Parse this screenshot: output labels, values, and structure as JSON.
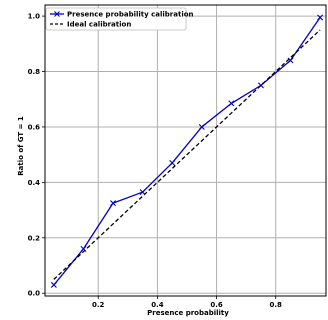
{
  "chart_data": {
    "type": "line",
    "xlabel": "Presence probability",
    "ylabel": "Ratio of GT = 1",
    "xlim": [
      0.02,
      0.97
    ],
    "ylim": [
      -0.01,
      1.04
    ],
    "xticks": [
      0.2,
      0.4,
      0.6,
      0.8
    ],
    "xtick_labels": [
      "0.2",
      "0.4",
      "0.6",
      "0.8"
    ],
    "yticks": [
      0.0,
      0.2,
      0.4,
      0.6,
      0.8,
      1.0
    ],
    "ytick_labels": [
      "0.0",
      "0.2",
      "0.4",
      "0.6",
      "0.8",
      "1.0"
    ],
    "grid": true,
    "legend_position": "top-left",
    "series": [
      {
        "name": "Presence probability calibration",
        "color": "#0000cc",
        "style": "solid",
        "marker": "x",
        "x": [
          0.05,
          0.15,
          0.25,
          0.35,
          0.45,
          0.55,
          0.65,
          0.75,
          0.85,
          0.95
        ],
        "y": [
          0.03,
          0.16,
          0.325,
          0.365,
          0.47,
          0.6,
          0.685,
          0.75,
          0.84,
          0.995
        ]
      },
      {
        "name": "Ideal calibration",
        "color": "#000000",
        "style": "dashed",
        "marker": "none",
        "x": [
          0.05,
          0.95
        ],
        "y": [
          0.05,
          0.95
        ]
      }
    ]
  }
}
